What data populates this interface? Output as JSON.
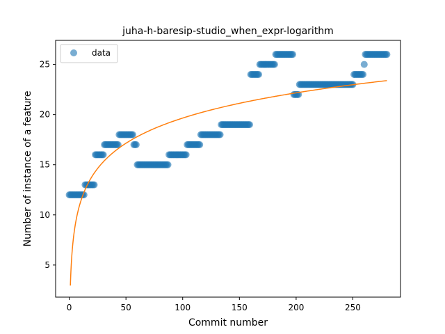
{
  "chart_data": {
    "type": "scatter",
    "title": "juha-h-baresip-studio_when_expr-logarithm",
    "xlabel": "Commit number",
    "ylabel": "Number of instance of a feature",
    "xlim": [
      -12,
      292
    ],
    "ylim": [
      1.8,
      27.4
    ],
    "xticks": [
      0,
      50,
      100,
      150,
      200,
      250
    ],
    "yticks": [
      5,
      10,
      15,
      20,
      25
    ],
    "grid": false,
    "legend_position": "top-left",
    "series": [
      {
        "name": "data",
        "kind": "scatter",
        "color": "#1f77b4",
        "steps": [
          {
            "x_start": 0,
            "x_end": 13,
            "y": 12
          },
          {
            "x_start": 14,
            "x_end": 22,
            "y": 13
          },
          {
            "x_start": 23,
            "x_end": 30,
            "y": 16
          },
          {
            "x_start": 31,
            "x_end": 43,
            "y": 17
          },
          {
            "x_start": 44,
            "x_end": 56,
            "y": 18
          },
          {
            "x_start": 57,
            "x_end": 59,
            "y": 17
          },
          {
            "x_start": 60,
            "x_end": 87,
            "y": 15
          },
          {
            "x_start": 88,
            "x_end": 103,
            "y": 16
          },
          {
            "x_start": 104,
            "x_end": 115,
            "y": 17
          },
          {
            "x_start": 116,
            "x_end": 133,
            "y": 18
          },
          {
            "x_start": 134,
            "x_end": 159,
            "y": 19
          },
          {
            "x_start": 160,
            "x_end": 167,
            "y": 24
          },
          {
            "x_start": 168,
            "x_end": 181,
            "y": 25
          },
          {
            "x_start": 182,
            "x_end": 197,
            "y": 26
          },
          {
            "x_start": 198,
            "x_end": 202,
            "y": 22
          },
          {
            "x_start": 203,
            "x_end": 250,
            "y": 23
          },
          {
            "x_start": 251,
            "x_end": 259,
            "y": 24
          },
          {
            "x_start": 260,
            "x_end": 260,
            "y": 25
          },
          {
            "x_start": 261,
            "x_end": 280,
            "y": 26
          }
        ]
      },
      {
        "name": "",
        "kind": "line",
        "color": "#ff7f0e",
        "model": "logarithmic",
        "a": 2.95,
        "b": 3.627,
        "x_range": [
          1,
          280
        ]
      }
    ]
  }
}
